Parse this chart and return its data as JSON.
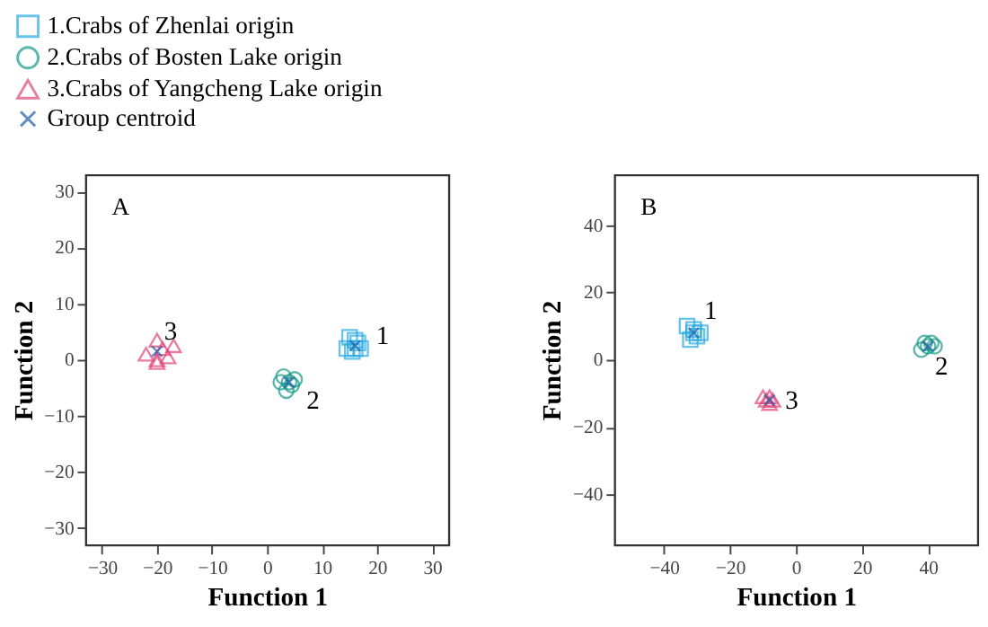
{
  "chart_data": [
    {
      "type": "scatter",
      "xlabel": "Function 1",
      "ylabel": "Function 2",
      "xlim": [
        -33,
        33
      ],
      "ylim": [
        -33,
        33
      ],
      "xticks": [
        -30,
        -20,
        -10,
        0,
        10,
        20,
        30
      ],
      "yticks": [
        -30,
        -20,
        -10,
        0,
        10,
        20,
        30
      ],
      "grid": false,
      "legend": "top left",
      "series": [
        {
          "name": "1.Crabs of Zhenlai origin",
          "color": "#29abe2",
          "marker": "square",
          "x": [
            15,
            16,
            14.5,
            16,
            17,
            15.5,
            16.5
          ],
          "values": [
            4,
            3.5,
            2,
            2,
            2,
            1.5,
            3
          ]
        },
        {
          "name": "2.Crabs of Bosten Lake origin",
          "color": "#1a9988",
          "marker": "circle",
          "x": [
            3,
            5,
            4,
            3.5,
            2.5,
            4.5
          ],
          "values": [
            -3,
            -3.5,
            -4,
            -5.5,
            -4,
            -4.5
          ]
        },
        {
          "name": "3.Crabs of Yangcheng Lake origin",
          "color": "#e0457b",
          "marker": "triangle",
          "x": [
            -20,
            -22,
            -17,
            -20,
            -18,
            -19,
            -20
          ],
          "values": [
            3.5,
            1,
            2.5,
            0,
            0.5,
            2,
            -0.5
          ]
        },
        {
          "name": "Group centroid",
          "color": "#1f5fa8",
          "marker": "cross",
          "x": [
            16,
            4,
            -20
          ],
          "values": [
            2.5,
            -4,
            1.5
          ]
        }
      ],
      "annotations": [
        "A",
        {
          "text": "1",
          "x": 16,
          "y": 2.5
        },
        {
          "text": "2",
          "x": 4,
          "y": -4
        },
        {
          "text": "3",
          "x": -20,
          "y": 1.5
        }
      ]
    },
    {
      "type": "scatter",
      "xlabel": "Function 1",
      "ylabel": "Function 2",
      "xlim": [
        -55,
        55
      ],
      "ylim": [
        -55,
        55
      ],
      "xticks": [
        -40,
        -20,
        0,
        20,
        40
      ],
      "yticks": [
        -40,
        -20,
        0,
        20,
        40
      ],
      "grid": false,
      "legend": false,
      "series": [
        {
          "color": "#29abe2",
          "marker": "square",
          "x": [
            -33,
            -31,
            -30,
            -32,
            -29,
            -31
          ],
          "values": [
            10,
            8,
            7,
            6,
            8,
            9
          ]
        },
        {
          "color": "#1a9988",
          "marker": "circle",
          "x": [
            38,
            40,
            41,
            39,
            42
          ],
          "values": [
            3,
            4,
            5,
            5,
            4
          ]
        },
        {
          "color": "#e0457b",
          "marker": "triangle",
          "x": [
            -8,
            -9,
            -7,
            -10,
            -8
          ],
          "values": [
            -11,
            -12,
            -12,
            -11,
            -13
          ]
        },
        {
          "color": "#1f5fa8",
          "marker": "cross",
          "x": [
            -31,
            40,
            -8
          ],
          "values": [
            8,
            4,
            -12
          ]
        }
      ],
      "annotations": [
        "B",
        {
          "text": "1",
          "x": -31,
          "y": 8
        },
        {
          "text": "2",
          "x": 40,
          "y": 4
        },
        {
          "text": "3",
          "x": -8,
          "y": -12
        }
      ]
    }
  ]
}
